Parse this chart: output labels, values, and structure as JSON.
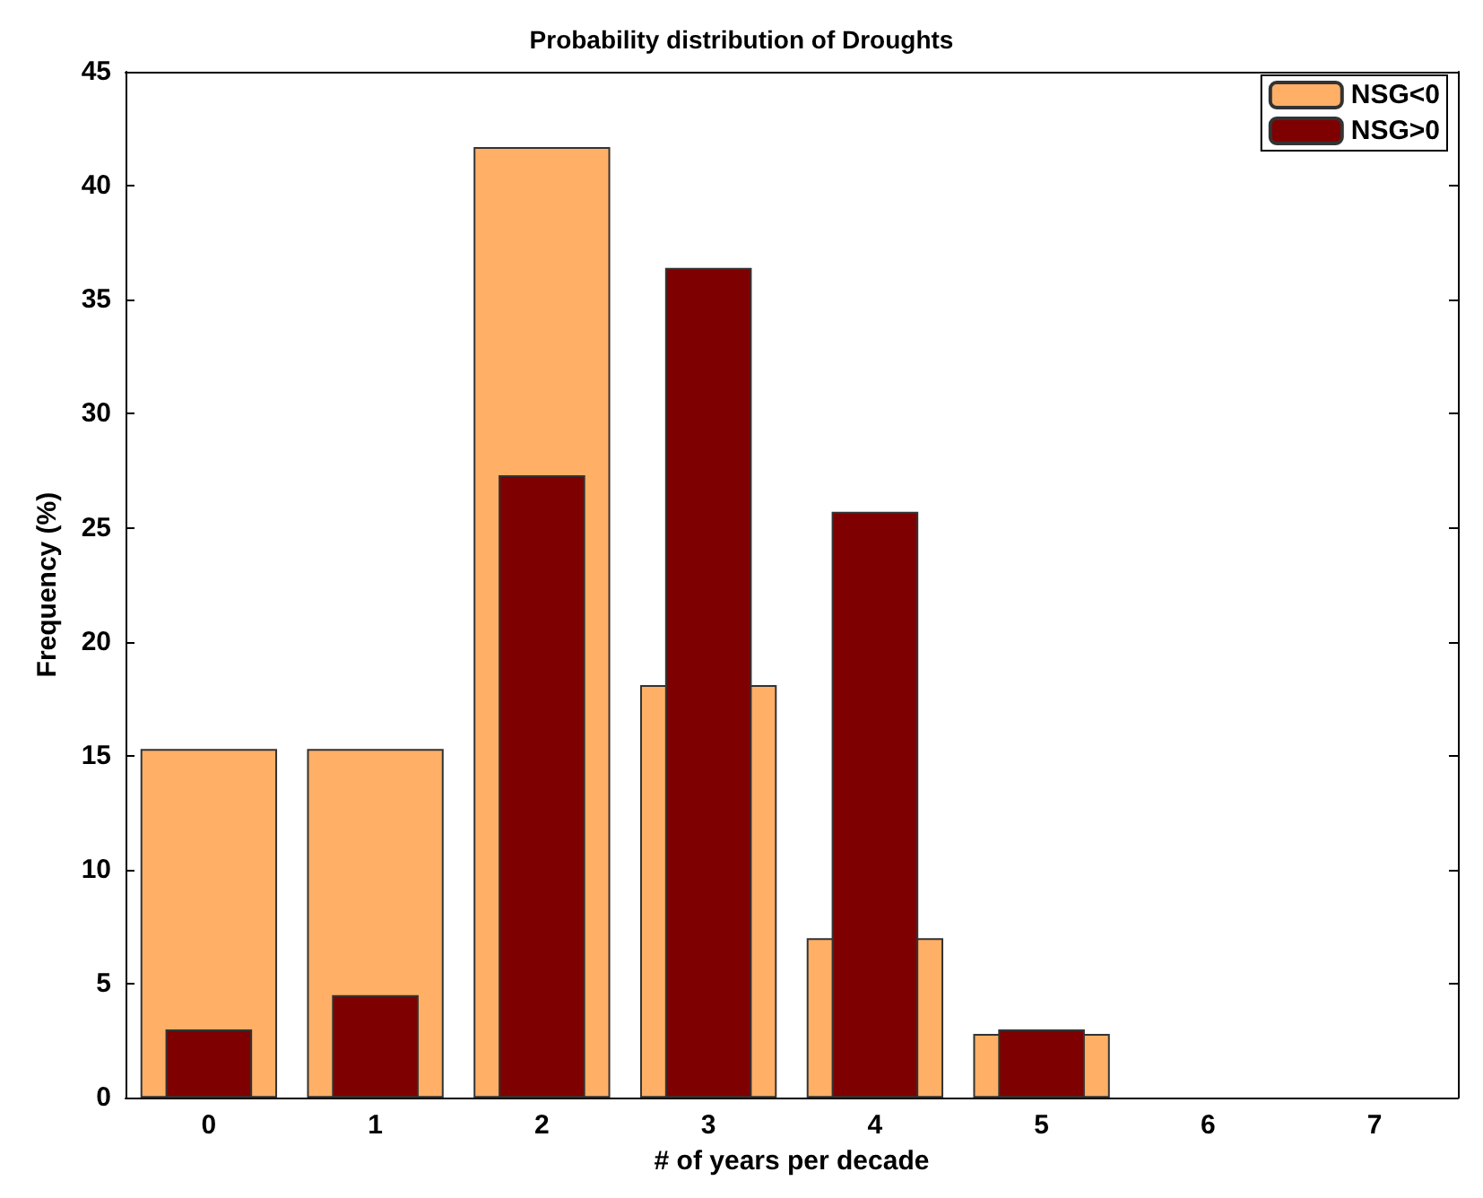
{
  "chart_data": {
    "type": "bar",
    "title": "Probability distribution of Droughts",
    "xlabel": "# of years per decade",
    "ylabel": "Frequency (%)",
    "categories": [
      "0",
      "1",
      "2",
      "3",
      "4",
      "5",
      "6",
      "7"
    ],
    "series": [
      {
        "name": "NSG<0",
        "color": "#ffb066",
        "values": [
          15.3,
          15.3,
          41.7,
          18.1,
          7.0,
          2.8,
          0,
          0
        ]
      },
      {
        "name": "NSG>0",
        "color": "#7f0000",
        "values": [
          3.0,
          4.5,
          27.3,
          36.4,
          25.7,
          3.0,
          0,
          0
        ]
      }
    ],
    "ylim": [
      0,
      45
    ],
    "yticks": [
      0,
      5,
      10,
      15,
      20,
      25,
      30,
      35,
      40,
      45
    ],
    "grid": false,
    "legend": "top right"
  }
}
